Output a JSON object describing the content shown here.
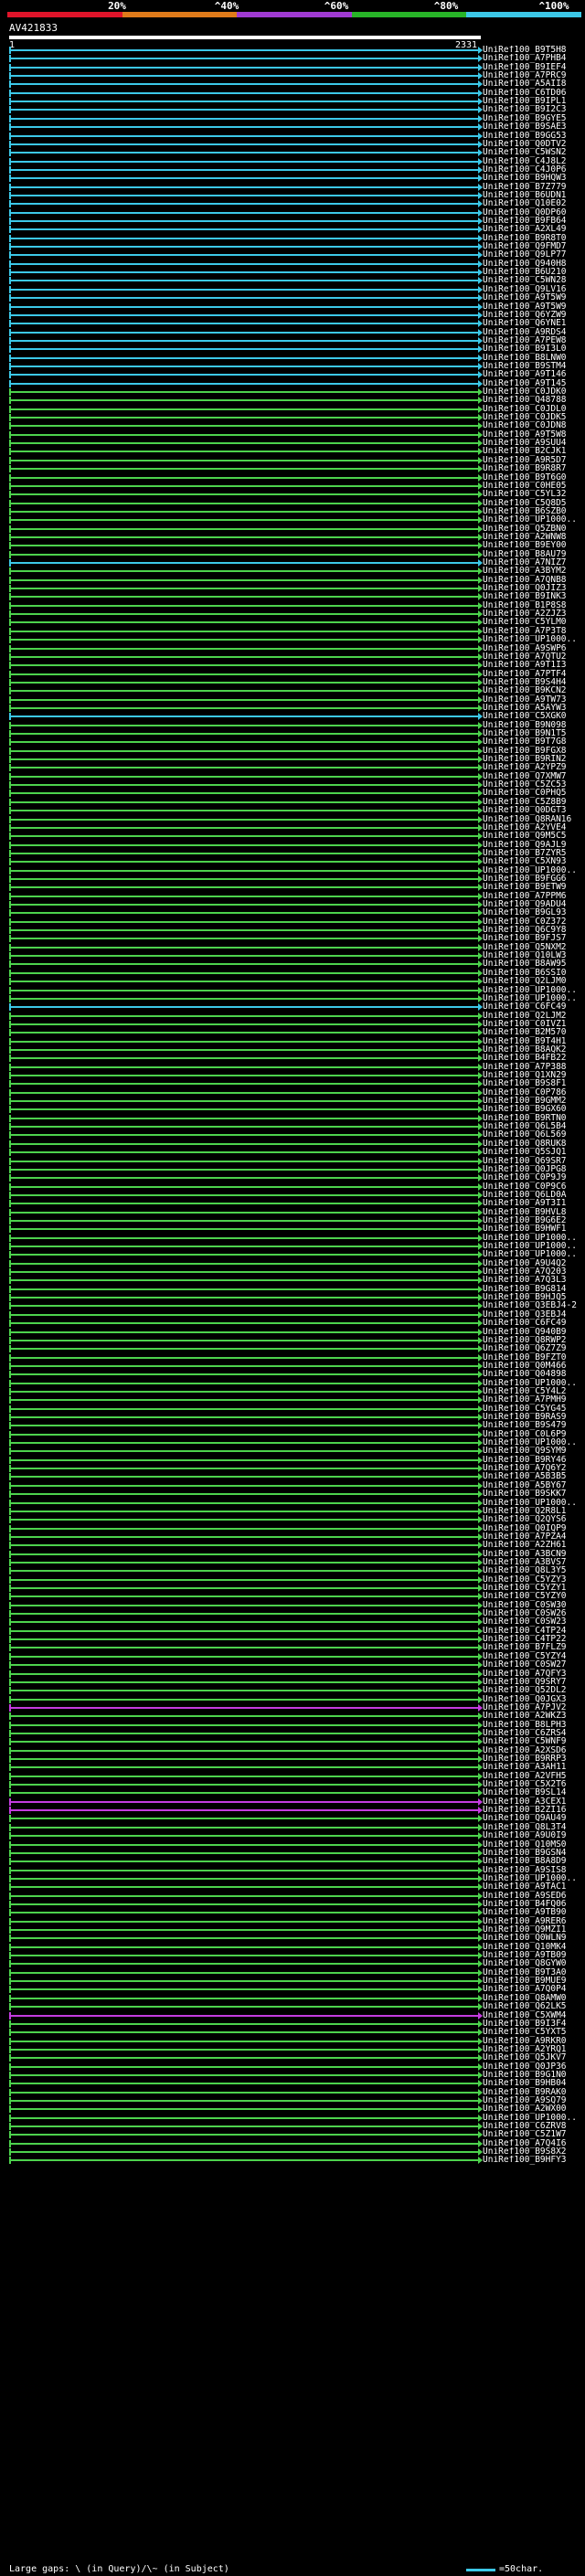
{
  "scale": {
    "labels": [
      "20%",
      "^40%",
      "^60%",
      "^80%",
      "^100%"
    ],
    "colors": [
      "#e0142a",
      "#e07b1a",
      "#a03ad2",
      "#28b428",
      "#3cc8e8"
    ]
  },
  "query": {
    "id": "AV421833",
    "start": "1",
    "end": "2331"
  },
  "row_colors": {
    "cyan": "#3cc8e8",
    "green": "#4dd24d",
    "purple": "#c43ce0"
  },
  "hits": [
    {
      "id": "UniRef100_B9T5H8",
      "color": "cyan"
    },
    {
      "id": "UniRef100_A7PHB4",
      "color": "cyan"
    },
    {
      "id": "UniRef100_B9IEF4",
      "color": "cyan"
    },
    {
      "id": "UniRef100_A7PRC9",
      "color": "cyan"
    },
    {
      "id": "UniRef100_A5AII8",
      "color": "cyan"
    },
    {
      "id": "UniRef100_C6TD06",
      "color": "cyan"
    },
    {
      "id": "UniRef100_B9IPL1",
      "color": "cyan"
    },
    {
      "id": "UniRef100_B9I2C3",
      "color": "cyan"
    },
    {
      "id": "UniRef100_B9GYE5",
      "color": "cyan"
    },
    {
      "id": "UniRef100_B9SAE3",
      "color": "cyan"
    },
    {
      "id": "UniRef100_B9GG53",
      "color": "cyan"
    },
    {
      "id": "UniRef100_Q0DTV2",
      "color": "cyan"
    },
    {
      "id": "UniRef100_C5WSN2",
      "color": "cyan"
    },
    {
      "id": "UniRef100_C4J8L2",
      "color": "cyan"
    },
    {
      "id": "UniRef100_C4J0P6",
      "color": "cyan"
    },
    {
      "id": "UniRef100_B9HQW3",
      "color": "cyan"
    },
    {
      "id": "UniRef100_B7Z779",
      "color": "cyan"
    },
    {
      "id": "UniRef100_B6UDN1",
      "color": "cyan"
    },
    {
      "id": "UniRef100_Q10E02",
      "color": "cyan"
    },
    {
      "id": "UniRef100_Q0DP60",
      "color": "cyan"
    },
    {
      "id": "UniRef100_B9FB64",
      "color": "cyan"
    },
    {
      "id": "UniRef100_A2XL49",
      "color": "cyan"
    },
    {
      "id": "UniRef100_B9R8T0",
      "color": "cyan"
    },
    {
      "id": "UniRef100_Q9FMD7",
      "color": "cyan"
    },
    {
      "id": "UniRef100_Q9LP77",
      "color": "cyan"
    },
    {
      "id": "UniRef100_Q940H8",
      "color": "cyan"
    },
    {
      "id": "UniRef100_B6U210",
      "color": "cyan"
    },
    {
      "id": "UniRef100_C5WN28",
      "color": "cyan"
    },
    {
      "id": "UniRef100_Q9LV16",
      "color": "cyan"
    },
    {
      "id": "UniRef100_A9T5W9",
      "color": "cyan"
    },
    {
      "id": "UniRef100_A9T5W9",
      "color": "cyan"
    },
    {
      "id": "UniRef100_Q6YZW9",
      "color": "cyan"
    },
    {
      "id": "UniRef100_Q6YNE1",
      "color": "cyan"
    },
    {
      "id": "UniRef100_A9RDS4",
      "color": "cyan"
    },
    {
      "id": "UniRef100_A7PEW8",
      "color": "cyan"
    },
    {
      "id": "UniRef100_B9I3L0",
      "color": "cyan"
    },
    {
      "id": "UniRef100_B8LNW0",
      "color": "cyan"
    },
    {
      "id": "UniRef100_B9STM4",
      "color": "cyan"
    },
    {
      "id": "UniRef100_A9T146",
      "color": "cyan"
    },
    {
      "id": "UniRef100_A9T145",
      "color": "cyan"
    },
    {
      "id": "UniRef100_C0JDK0",
      "color": "green"
    },
    {
      "id": "UniRef100_Q48788",
      "color": "green"
    },
    {
      "id": "UniRef100_C0JDL0",
      "color": "green"
    },
    {
      "id": "UniRef100_C0JDK5",
      "color": "green"
    },
    {
      "id": "UniRef100_C0JDN8",
      "color": "green"
    },
    {
      "id": "UniRef100_A9T5W8",
      "color": "green"
    },
    {
      "id": "UniRef100_A9SUU4",
      "color": "green"
    },
    {
      "id": "UniRef100_B2CJK1",
      "color": "green"
    },
    {
      "id": "UniRef100_A9R5D7",
      "color": "green"
    },
    {
      "id": "UniRef100_B9R8R7",
      "color": "green"
    },
    {
      "id": "UniRef100_B9T6G0",
      "color": "green"
    },
    {
      "id": "UniRef100_C0HE05",
      "color": "green"
    },
    {
      "id": "UniRef100_C5YL32",
      "color": "green"
    },
    {
      "id": "UniRef100_C5Q8D5",
      "color": "green"
    },
    {
      "id": "UniRef100_B6SZB0",
      "color": "green"
    },
    {
      "id": "UniRef100_UP1000..",
      "color": "green"
    },
    {
      "id": "UniRef100_Q5ZBN0",
      "color": "green"
    },
    {
      "id": "UniRef100_A2WNW8",
      "color": "green"
    },
    {
      "id": "UniRef100_B9EY00",
      "color": "green"
    },
    {
      "id": "UniRef100_B8AU79",
      "color": "green"
    },
    {
      "id": "UniRef100_A7NIZ7",
      "color": "cyan"
    },
    {
      "id": "UniRef100_A3BYM2",
      "color": "green"
    },
    {
      "id": "UniRef100_A7QNB8",
      "color": "green"
    },
    {
      "id": "UniRef100_Q0JIZ3",
      "color": "green"
    },
    {
      "id": "UniRef100_B9INK3",
      "color": "green"
    },
    {
      "id": "UniRef100_B1P8S8",
      "color": "green"
    },
    {
      "id": "UniRef100_A2ZJZ3",
      "color": "green"
    },
    {
      "id": "UniRef100_C5YLM0",
      "color": "green"
    },
    {
      "id": "UniRef100_A7P3T8",
      "color": "green"
    },
    {
      "id": "UniRef100_UP1000..",
      "color": "green"
    },
    {
      "id": "UniRef100_A9SWP6",
      "color": "green"
    },
    {
      "id": "UniRef100_A7QTU2",
      "color": "green"
    },
    {
      "id": "UniRef100_A9T1I3",
      "color": "green"
    },
    {
      "id": "UniRef100_A7PTF4",
      "color": "green"
    },
    {
      "id": "UniRef100_B9S4H4",
      "color": "green"
    },
    {
      "id": "UniRef100_B9KCN2",
      "color": "green"
    },
    {
      "id": "UniRef100_A9TW73",
      "color": "green"
    },
    {
      "id": "UniRef100_A5AYW3",
      "color": "green"
    },
    {
      "id": "UniRef100_C5XGK0",
      "color": "cyan"
    },
    {
      "id": "UniRef100_B9N098",
      "color": "green"
    },
    {
      "id": "UniRef100_B9N1T5",
      "color": "green"
    },
    {
      "id": "UniRef100_B9T7G8",
      "color": "green"
    },
    {
      "id": "UniRef100_B9FGX8",
      "color": "green"
    },
    {
      "id": "UniRef100_B9RIN2",
      "color": "green"
    },
    {
      "id": "UniRef100_A2YPZ9",
      "color": "green"
    },
    {
      "id": "UniRef100_Q7XMW7",
      "color": "green"
    },
    {
      "id": "UniRef100_C5ZC53",
      "color": "green"
    },
    {
      "id": "UniRef100_C0PHQ5",
      "color": "green"
    },
    {
      "id": "UniRef100_C5Z8B9",
      "color": "green"
    },
    {
      "id": "UniRef100_Q0DGT3",
      "color": "green"
    },
    {
      "id": "UniRef100_Q8RAN16",
      "color": "green"
    },
    {
      "id": "UniRef100_A2YVE4",
      "color": "green"
    },
    {
      "id": "UniRef100_Q9M5C5",
      "color": "green"
    },
    {
      "id": "UniRef100_Q9AJL9",
      "color": "green"
    },
    {
      "id": "UniRef100_B7ZYR5",
      "color": "green"
    },
    {
      "id": "UniRef100_C5XN93",
      "color": "green"
    },
    {
      "id": "UniRef100_UP1000..",
      "color": "green"
    },
    {
      "id": "UniRef100_B9FGG6",
      "color": "green"
    },
    {
      "id": "UniRef100_B9ETW9",
      "color": "green"
    },
    {
      "id": "UniRef100_A7PPM6",
      "color": "green"
    },
    {
      "id": "UniRef100_Q9ADU4",
      "color": "green"
    },
    {
      "id": "UniRef100_B9GL93",
      "color": "green"
    },
    {
      "id": "UniRef100_C0Z372",
      "color": "green"
    },
    {
      "id": "UniRef100_Q6C9Y8",
      "color": "green"
    },
    {
      "id": "UniRef100_B9FJS7",
      "color": "green"
    },
    {
      "id": "UniRef100_Q5NXM2",
      "color": "green"
    },
    {
      "id": "UniRef100_Q10LW3",
      "color": "green"
    },
    {
      "id": "UniRef100_B8AW95",
      "color": "green"
    },
    {
      "id": "UniRef100_B6SSI0",
      "color": "green"
    },
    {
      "id": "UniRef100_Q2LJM0",
      "color": "green"
    },
    {
      "id": "UniRef100_UP1000..",
      "color": "green"
    },
    {
      "id": "UniRef100_UP1000..",
      "color": "green"
    },
    {
      "id": "UniRef100_C6FC49",
      "color": "cyan"
    },
    {
      "id": "UniRef100_Q2LJM2",
      "color": "green"
    },
    {
      "id": "UniRef100_C0IVZ1",
      "color": "green"
    },
    {
      "id": "UniRef100_B2M570",
      "color": "green"
    },
    {
      "id": "UniRef100_B9T4H1",
      "color": "green"
    },
    {
      "id": "UniRef100_B8AQK2",
      "color": "green"
    },
    {
      "id": "UniRef100_B4FB22",
      "color": "green"
    },
    {
      "id": "UniRef100_A7P388",
      "color": "green"
    },
    {
      "id": "UniRef100_Q1XN29",
      "color": "green"
    },
    {
      "id": "UniRef100_B9S8F1",
      "color": "green"
    },
    {
      "id": "UniRef100_C0P786",
      "color": "green"
    },
    {
      "id": "UniRef100_B9GMM2",
      "color": "green"
    },
    {
      "id": "UniRef100_B9GX60",
      "color": "green"
    },
    {
      "id": "UniRef100_B9RTN0",
      "color": "green"
    },
    {
      "id": "UniRef100_Q6L5B4",
      "color": "green"
    },
    {
      "id": "UniRef100_Q6L569",
      "color": "green"
    },
    {
      "id": "UniRef100_Q8RUK8",
      "color": "green"
    },
    {
      "id": "UniRef100_Q5SJQ1",
      "color": "green"
    },
    {
      "id": "UniRef100_Q69SR7",
      "color": "green"
    },
    {
      "id": "UniRef100_Q0JPG8",
      "color": "green"
    },
    {
      "id": "UniRef100_C0P9J9",
      "color": "green"
    },
    {
      "id": "UniRef100_C0P9C6",
      "color": "green"
    },
    {
      "id": "UniRef100_Q6LD0A",
      "color": "green"
    },
    {
      "id": "UniRef100_A9T3I1",
      "color": "green"
    },
    {
      "id": "UniRef100_B9HVL8",
      "color": "green"
    },
    {
      "id": "UniRef100_B9G6E2",
      "color": "green"
    },
    {
      "id": "UniRef100_B9HWF1",
      "color": "green"
    },
    {
      "id": "UniRef100_UP1000..",
      "color": "green"
    },
    {
      "id": "UniRef100_UP1000..",
      "color": "green"
    },
    {
      "id": "UniRef100_UP1000..",
      "color": "green"
    },
    {
      "id": "UniRef100_A9U4Q2",
      "color": "green"
    },
    {
      "id": "UniRef100_A7Q203",
      "color": "green"
    },
    {
      "id": "UniRef100_A7Q3L3",
      "color": "green"
    },
    {
      "id": "UniRef100_B9G814",
      "color": "green"
    },
    {
      "id": "UniRef100_B9HJQ5",
      "color": "green"
    },
    {
      "id": "UniRef100_Q3EBJ4-2",
      "color": "green"
    },
    {
      "id": "UniRef100_Q3EBJ4",
      "color": "green"
    },
    {
      "id": "UniRef100_C6FC49",
      "color": "green"
    },
    {
      "id": "UniRef100_Q940B9",
      "color": "green"
    },
    {
      "id": "UniRef100_Q8RWP2",
      "color": "green"
    },
    {
      "id": "UniRef100_Q6Z7Z9",
      "color": "green"
    },
    {
      "id": "UniRef100_B9FZT0",
      "color": "green"
    },
    {
      "id": "UniRef100_Q0M466",
      "color": "green"
    },
    {
      "id": "UniRef100_Q04898",
      "color": "green"
    },
    {
      "id": "UniRef100_UP1000..",
      "color": "green"
    },
    {
      "id": "UniRef100_C5Y4L2",
      "color": "green"
    },
    {
      "id": "UniRef100_A7PMH9",
      "color": "green"
    },
    {
      "id": "UniRef100_C5YG45",
      "color": "green"
    },
    {
      "id": "UniRef100_B9RAS9",
      "color": "green"
    },
    {
      "id": "UniRef100_B9S479",
      "color": "green"
    },
    {
      "id": "UniRef100_C0L6P9",
      "color": "green"
    },
    {
      "id": "UniRef100_UP1000..",
      "color": "green"
    },
    {
      "id": "UniRef100_Q9SYM9",
      "color": "green"
    },
    {
      "id": "UniRef100_B9RY46",
      "color": "green"
    },
    {
      "id": "UniRef100_A7Q6Y2",
      "color": "green"
    },
    {
      "id": "UniRef100_A5B3B5",
      "color": "green"
    },
    {
      "id": "UniRef100_A5BY67",
      "color": "green"
    },
    {
      "id": "UniRef100_B9SKK7",
      "color": "green"
    },
    {
      "id": "UniRef100_UP1000..",
      "color": "green"
    },
    {
      "id": "UniRef100_Q2R8L1",
      "color": "green"
    },
    {
      "id": "UniRef100_Q2QYS6",
      "color": "green"
    },
    {
      "id": "UniRef100_Q0IQP9",
      "color": "green"
    },
    {
      "id": "UniRef100_A7PZA4",
      "color": "green"
    },
    {
      "id": "UniRef100_A2ZH61",
      "color": "green"
    },
    {
      "id": "UniRef100_A3BCN9",
      "color": "green"
    },
    {
      "id": "UniRef100_A3BVS7",
      "color": "green"
    },
    {
      "id": "UniRef100_Q8L3Y5",
      "color": "green"
    },
    {
      "id": "UniRef100_C5YZY3",
      "color": "green"
    },
    {
      "id": "UniRef100_C5YZY1",
      "color": "green"
    },
    {
      "id": "UniRef100_C5YZY0",
      "color": "green"
    },
    {
      "id": "UniRef100_C0SW30",
      "color": "green"
    },
    {
      "id": "UniRef100_C0SW26",
      "color": "green"
    },
    {
      "id": "UniRef100_C0SW23",
      "color": "green"
    },
    {
      "id": "UniRef100_C4TP24",
      "color": "green"
    },
    {
      "id": "UniRef100_C4TP22",
      "color": "green"
    },
    {
      "id": "UniRef100_B7FLZ9",
      "color": "green"
    },
    {
      "id": "UniRef100_C5YZY4",
      "color": "green"
    },
    {
      "id": "UniRef100_C0SW27",
      "color": "green"
    },
    {
      "id": "UniRef100_A7QFY3",
      "color": "green"
    },
    {
      "id": "UniRef100_Q9SRY7",
      "color": "green"
    },
    {
      "id": "UniRef100_Q52DL2",
      "color": "green"
    },
    {
      "id": "UniRef100_Q0JGX3",
      "color": "green"
    },
    {
      "id": "UniRef100_A7PJV2",
      "color": "purple"
    },
    {
      "id": "UniRef100_A2WKZ3",
      "color": "green"
    },
    {
      "id": "UniRef100_B8LPH3",
      "color": "green"
    },
    {
      "id": "UniRef100_C6ZRS4",
      "color": "green"
    },
    {
      "id": "UniRef100_C5WNF9",
      "color": "green"
    },
    {
      "id": "UniRef100_A2XSD6",
      "color": "green"
    },
    {
      "id": "UniRef100_B9RRP3",
      "color": "green"
    },
    {
      "id": "UniRef100_A3AH11",
      "color": "green"
    },
    {
      "id": "UniRef100_A2VFH5",
      "color": "green"
    },
    {
      "id": "UniRef100_C5X2T6",
      "color": "green"
    },
    {
      "id": "UniRef100_B9SL14",
      "color": "green"
    },
    {
      "id": "UniRef100_A3CEX1",
      "color": "purple"
    },
    {
      "id": "UniRef100_B2ZI16",
      "color": "purple"
    },
    {
      "id": "UniRef100_Q9AU49",
      "color": "green"
    },
    {
      "id": "UniRef100_Q8L3T4",
      "color": "green"
    },
    {
      "id": "UniRef100_A9U0I9",
      "color": "green"
    },
    {
      "id": "UniRef100_Q10MS0",
      "color": "green"
    },
    {
      "id": "UniRef100_B9GSN4",
      "color": "green"
    },
    {
      "id": "UniRef100_B8A8D9",
      "color": "green"
    },
    {
      "id": "UniRef100_A9SIS8",
      "color": "green"
    },
    {
      "id": "UniRef100_UP1000..",
      "color": "green"
    },
    {
      "id": "UniRef100_A9TAC1",
      "color": "green"
    },
    {
      "id": "UniRef100_A9SED6",
      "color": "green"
    },
    {
      "id": "UniRef100_B4FQ06",
      "color": "green"
    },
    {
      "id": "UniRef100_A9TB90",
      "color": "green"
    },
    {
      "id": "UniRef100_A9RER6",
      "color": "green"
    },
    {
      "id": "UniRef100_Q9MZI1",
      "color": "green"
    },
    {
      "id": "UniRef100_Q0WLN9",
      "color": "green"
    },
    {
      "id": "UniRef100_Q10MK4",
      "color": "green"
    },
    {
      "id": "UniRef100_A9TB09",
      "color": "green"
    },
    {
      "id": "UniRef100_Q8GYW0",
      "color": "green"
    },
    {
      "id": "UniRef100_B9T3A0",
      "color": "green"
    },
    {
      "id": "UniRef100_B9MUE9",
      "color": "green"
    },
    {
      "id": "UniRef100_A7Q0P4",
      "color": "green"
    },
    {
      "id": "UniRef100_Q8AMW0",
      "color": "green"
    },
    {
      "id": "UniRef100_Q62LK5",
      "color": "green"
    },
    {
      "id": "UniRef100_C5XWM4",
      "color": "purple"
    },
    {
      "id": "UniRef100_B9I3F4",
      "color": "green"
    },
    {
      "id": "UniRef100_C5YXT5",
      "color": "green"
    },
    {
      "id": "UniRef100_A9RKR0",
      "color": "green"
    },
    {
      "id": "UniRef100_A2YRQ1",
      "color": "green"
    },
    {
      "id": "UniRef100_Q5JKV7",
      "color": "green"
    },
    {
      "id": "UniRef100_Q0JP36",
      "color": "green"
    },
    {
      "id": "UniRef100_B9G1N0",
      "color": "green"
    },
    {
      "id": "UniRef100_B9HB04",
      "color": "green"
    },
    {
      "id": "UniRef100_B9RAK0",
      "color": "green"
    },
    {
      "id": "UniRef100_A9SQ79",
      "color": "green"
    },
    {
      "id": "UniRef100_A2WX00",
      "color": "green"
    },
    {
      "id": "UniRef100_UP1000..",
      "color": "green"
    },
    {
      "id": "UniRef100_C6ZRV8",
      "color": "green"
    },
    {
      "id": "UniRef100_C5Z1W7",
      "color": "green"
    },
    {
      "id": "UniRef100_A7Q4I6",
      "color": "green"
    },
    {
      "id": "UniRef100_B9S8X2",
      "color": "green"
    },
    {
      "id": "UniRef100_B9HFY3",
      "color": "green"
    }
  ],
  "legend": {
    "left": "Large gaps: \\ (in Query)/\\~ (in Subject)",
    "right": "=50char."
  }
}
